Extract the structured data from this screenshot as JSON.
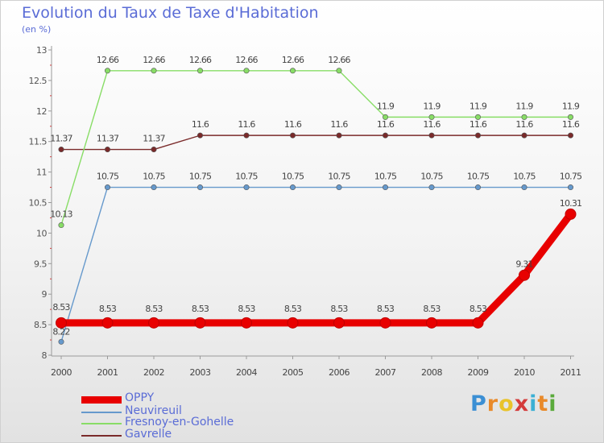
{
  "chart_data": {
    "type": "line",
    "title": "Evolution du Taux de Taxe d'Habitation",
    "subtitle": "(en %)",
    "xlabel": "",
    "ylabel": "(en %)",
    "ylim": [
      8,
      13
    ],
    "yticks": [
      "8",
      "8.5",
      "9",
      "9.5",
      "10",
      "10.5",
      "11",
      "11.5",
      "12",
      "12.5",
      "13"
    ],
    "categories": [
      "2000",
      "2001",
      "2002",
      "2003",
      "2004",
      "2005",
      "2006",
      "2007",
      "2008",
      "2009",
      "2010",
      "2011"
    ],
    "legend_position": "bottom-left",
    "grid": false,
    "series": [
      {
        "name": "OPPY",
        "color": "#e80000",
        "values": [
          8.53,
          8.53,
          8.53,
          8.53,
          8.53,
          8.53,
          8.53,
          8.53,
          8.53,
          8.53,
          9.31,
          10.31
        ],
        "labels": [
          "8.53",
          "8.53",
          "8.53",
          "8.53",
          "8.53",
          "8.53",
          "8.53",
          "8.53",
          "8.53",
          "8.53",
          "9.31",
          "10.31"
        ]
      },
      {
        "name": "Neuvireuil",
        "color": "#6699cc",
        "values": [
          8.22,
          10.75,
          10.75,
          10.75,
          10.75,
          10.75,
          10.75,
          10.75,
          10.75,
          10.75,
          10.75,
          10.75
        ],
        "labels": [
          "8.22",
          "10.75",
          "10.75",
          "10.75",
          "10.75",
          "10.75",
          "10.75",
          "10.75",
          "10.75",
          "10.75",
          "10.75",
          "10.75"
        ]
      },
      {
        "name": "Fresnoy-en-Gohelle",
        "color": "#88dd66",
        "values": [
          10.13,
          12.66,
          12.66,
          12.66,
          12.66,
          12.66,
          12.66,
          11.9,
          11.9,
          11.9,
          11.9,
          11.9
        ],
        "labels": [
          "10.13",
          "12.66",
          "12.66",
          "12.66",
          "12.66",
          "12.66",
          "12.66",
          "11.9",
          "11.9",
          "11.9",
          "11.9",
          "11.9"
        ]
      },
      {
        "name": "Gavrelle",
        "color": "#7a2a2a",
        "values": [
          11.37,
          11.37,
          11.37,
          11.6,
          11.6,
          11.6,
          11.6,
          11.6,
          11.6,
          11.6,
          11.6,
          11.6
        ],
        "labels": [
          "11.37",
          "11.37",
          "11.37",
          "11.6",
          "11.6",
          "11.6",
          "11.6",
          "11.6",
          "11.6",
          "11.6",
          "11.6",
          "11.6"
        ]
      }
    ]
  },
  "logo": {
    "text": "Proxiti",
    "letters": [
      {
        "char": "P",
        "color": "#3b8fd4"
      },
      {
        "char": "r",
        "color": "#e98a2a"
      },
      {
        "char": "o",
        "color": "#e9c32a"
      },
      {
        "char": "x",
        "color": "#d43b3b"
      },
      {
        "char": "i",
        "color": "#3bb0d4"
      },
      {
        "char": "t",
        "color": "#e98a2a"
      },
      {
        "char": "i",
        "color": "#5aaa3b"
      }
    ]
  }
}
